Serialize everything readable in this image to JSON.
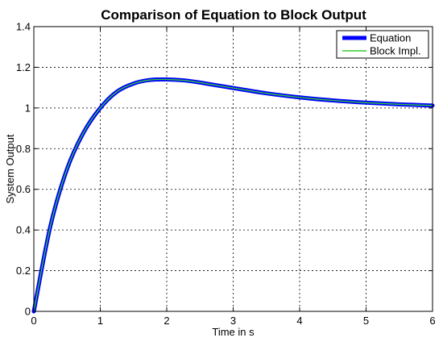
{
  "chart_data": {
    "type": "line",
    "title": "Comparison of Equation to Block Output",
    "xlabel": "Time in s",
    "ylabel": "System Output",
    "xlim": [
      0,
      6
    ],
    "ylim": [
      0,
      1.4
    ],
    "xticks": [
      0,
      1,
      2,
      3,
      4,
      5,
      6
    ],
    "yticks": [
      0,
      0.2,
      0.4,
      0.6,
      0.8,
      1,
      1.2,
      1.4
    ],
    "xtick_labels": [
      "0",
      "1",
      "2",
      "3",
      "4",
      "5",
      "6"
    ],
    "ytick_labels": [
      "0",
      "0.2",
      "0.4",
      "0.6",
      "0.8",
      "1",
      "1.2",
      "1.4"
    ],
    "grid": true,
    "legend_position": "top-right",
    "x": [
      0,
      0.25,
      0.5,
      0.75,
      1.0,
      1.25,
      1.5,
      1.75,
      2.0,
      2.25,
      2.5,
      3.0,
      3.5,
      4.0,
      4.5,
      5.0,
      5.5,
      6.0
    ],
    "series": [
      {
        "name": "Equation",
        "color": "#0000ff",
        "values": [
          0,
          0.42,
          0.7,
          0.88,
          1.0,
          1.08,
          1.12,
          1.138,
          1.14,
          1.136,
          1.125,
          1.098,
          1.072,
          1.052,
          1.037,
          1.026,
          1.018,
          1.012
        ]
      },
      {
        "name": "Block Impl.",
        "color": "#33cc33",
        "values": [
          0,
          0.42,
          0.7,
          0.88,
          1.0,
          1.08,
          1.12,
          1.138,
          1.14,
          1.136,
          1.125,
          1.098,
          1.072,
          1.052,
          1.037,
          1.026,
          1.018,
          1.012
        ]
      }
    ]
  }
}
